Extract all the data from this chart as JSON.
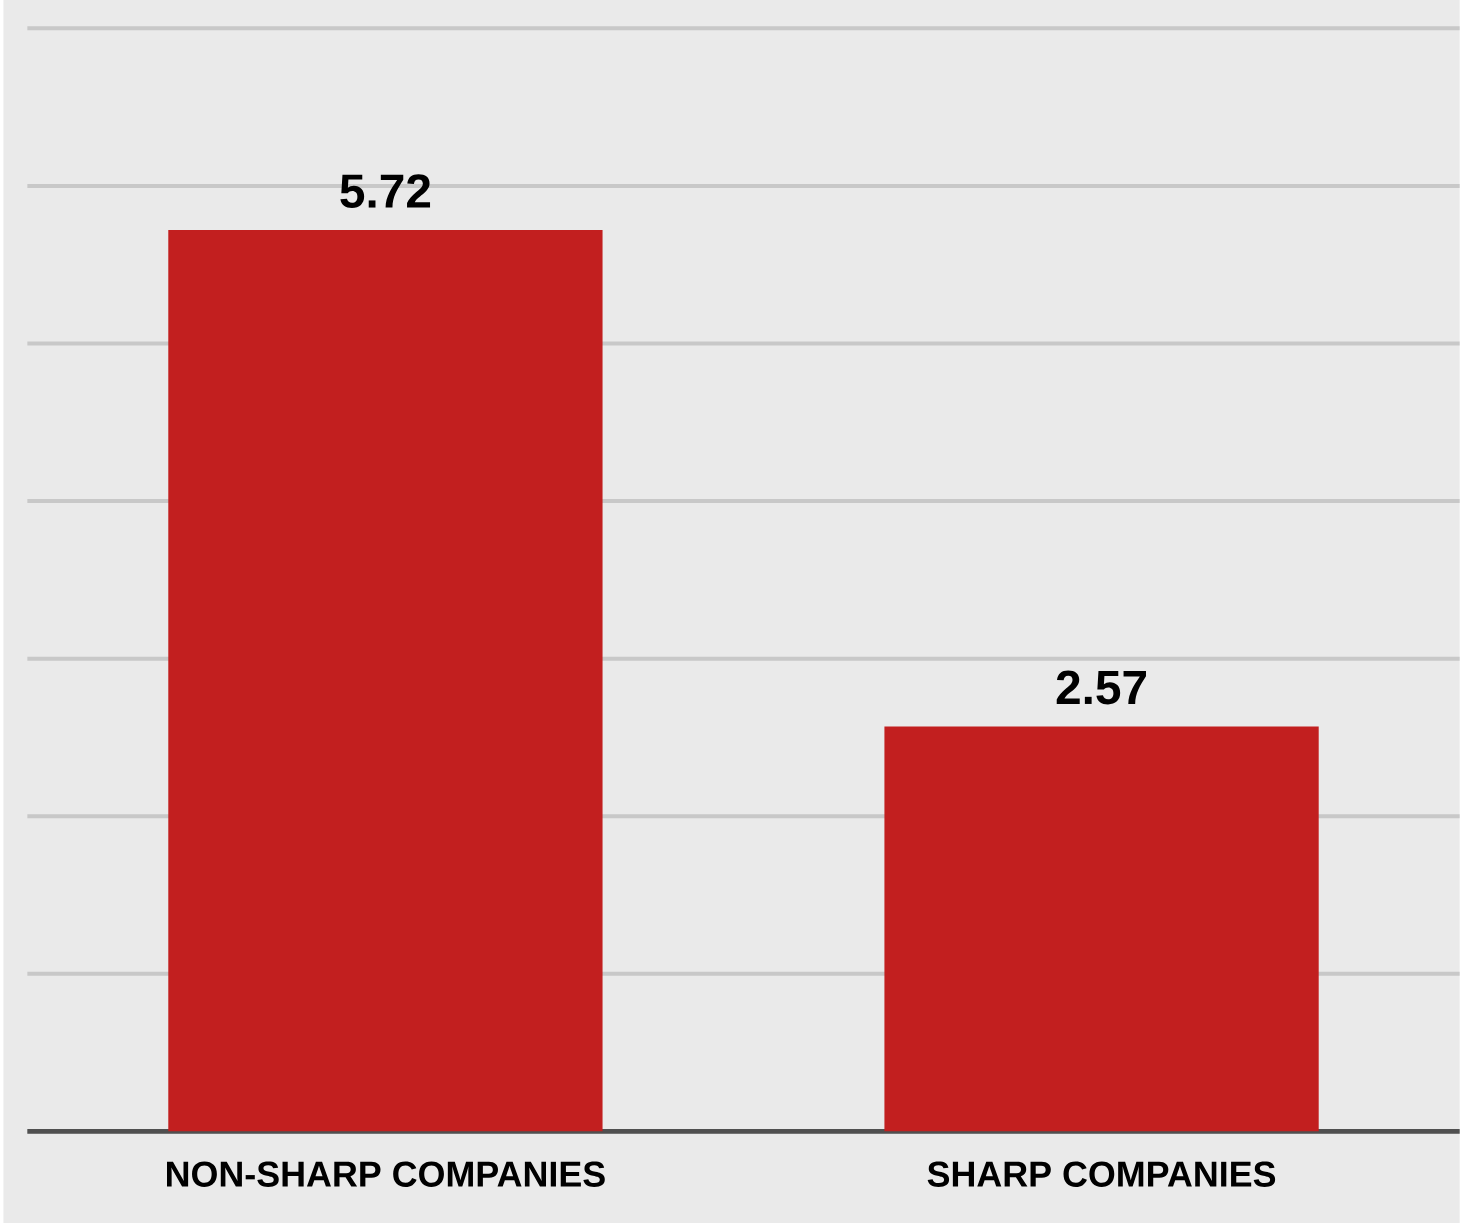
{
  "chart_data": {
    "type": "bar",
    "categories": [
      "NON-SHARP COMPANIES",
      "SHARP COMPANIES"
    ],
    "values": [
      5.72,
      2.57
    ],
    "color": "#c21f1f",
    "ylim": [
      0,
      7.18
    ],
    "grid": "y",
    "tick_labels": "x",
    "data_labels": true
  }
}
